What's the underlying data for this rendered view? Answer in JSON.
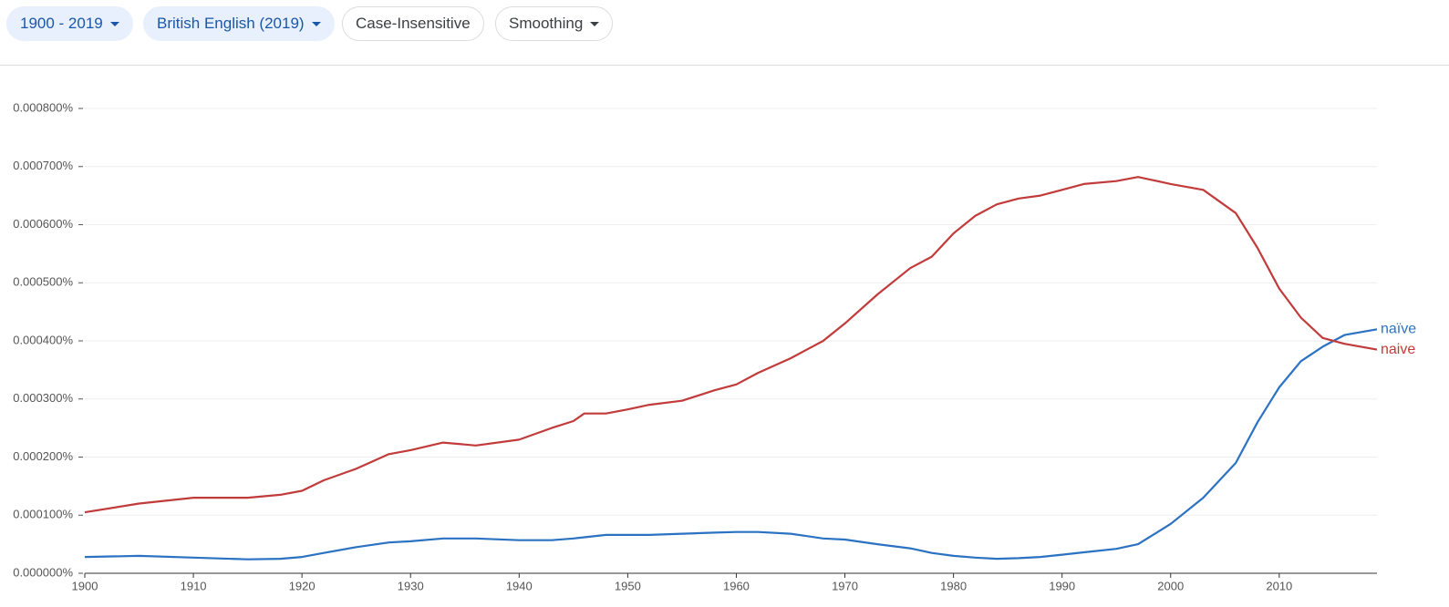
{
  "controls": [
    {
      "label": "1900 - 2019",
      "dropdown": true,
      "active": true
    },
    {
      "label": "British English (2019)",
      "dropdown": true,
      "active": true
    },
    {
      "label": "Case-Insensitive",
      "dropdown": false,
      "active": false
    },
    {
      "label": "Smoothing",
      "dropdown": true,
      "active": false
    }
  ],
  "chart_data": {
    "type": "line",
    "x": [
      1900,
      1905,
      1910,
      1915,
      1918,
      1920,
      1922,
      1925,
      1928,
      1930,
      1933,
      1936,
      1940,
      1943,
      1945,
      1946,
      1948,
      1950,
      1952,
      1955,
      1958,
      1960,
      1962,
      1965,
      1968,
      1970,
      1973,
      1976,
      1978,
      1980,
      1982,
      1984,
      1986,
      1988,
      1990,
      1992,
      1995,
      1997,
      2000,
      2003,
      2006,
      2008,
      2010,
      2012,
      2014,
      2016,
      2019
    ],
    "series": [
      {
        "name": "naïve",
        "color": "#2b72c2",
        "values": [
          2.8e-05,
          3e-05,
          2.7e-05,
          2.4e-05,
          2.5e-05,
          2.8e-05,
          3.5e-05,
          4.5e-05,
          5.3e-05,
          5.5e-05,
          6e-05,
          6e-05,
          5.7e-05,
          5.7e-05,
          6e-05,
          6.2e-05,
          6.6e-05,
          6.6e-05,
          6.6e-05,
          6.8e-05,
          7e-05,
          7.1e-05,
          7.1e-05,
          6.8e-05,
          6e-05,
          5.8e-05,
          5e-05,
          4.3e-05,
          3.5e-05,
          3e-05,
          2.7e-05,
          2.5e-05,
          2.6e-05,
          2.8e-05,
          3.2e-05,
          3.6e-05,
          4.2e-05,
          5e-05,
          8.5e-05,
          0.00013,
          0.00019,
          0.00026,
          0.00032,
          0.000365,
          0.00039,
          0.00041,
          0.00042
        ]
      },
      {
        "name": "naive",
        "color": "#c23b3b",
        "values": [
          0.000105,
          0.00012,
          0.00013,
          0.00013,
          0.000135,
          0.000142,
          0.00016,
          0.00018,
          0.000205,
          0.000212,
          0.000225,
          0.00022,
          0.00023,
          0.00025,
          0.000262,
          0.000275,
          0.000275,
          0.000282,
          0.00029,
          0.000297,
          0.000315,
          0.000325,
          0.000345,
          0.00037,
          0.0004,
          0.00043,
          0.00048,
          0.000525,
          0.000545,
          0.000585,
          0.000615,
          0.000635,
          0.000645,
          0.00065,
          0.00066,
          0.00067,
          0.000675,
          0.000682,
          0.00067,
          0.00066,
          0.00062,
          0.00056,
          0.00049,
          0.00044,
          0.000405,
          0.000395,
          0.000385
        ]
      }
    ],
    "xlim": [
      1900,
      2019
    ],
    "xticks": [
      1900,
      1910,
      1920,
      1930,
      1940,
      1950,
      1960,
      1970,
      1980,
      1990,
      2000,
      2010
    ],
    "ylim": [
      0,
      0.0008
    ],
    "yticks": [
      {
        "value": 0,
        "label": "0.000000%"
      },
      {
        "value": 0.0001,
        "label": "0.000100%"
      },
      {
        "value": 0.0002,
        "label": "0.000200%"
      },
      {
        "value": 0.0003,
        "label": "0.000300%"
      },
      {
        "value": 0.0004,
        "label": "0.000400%"
      },
      {
        "value": 0.0005,
        "label": "0.000500%"
      },
      {
        "value": 0.0006,
        "label": "0.000600%"
      },
      {
        "value": 0.0007,
        "label": "0.000700%"
      },
      {
        "value": 0.0008,
        "label": "0.000800%"
      }
    ],
    "grid": true
  }
}
